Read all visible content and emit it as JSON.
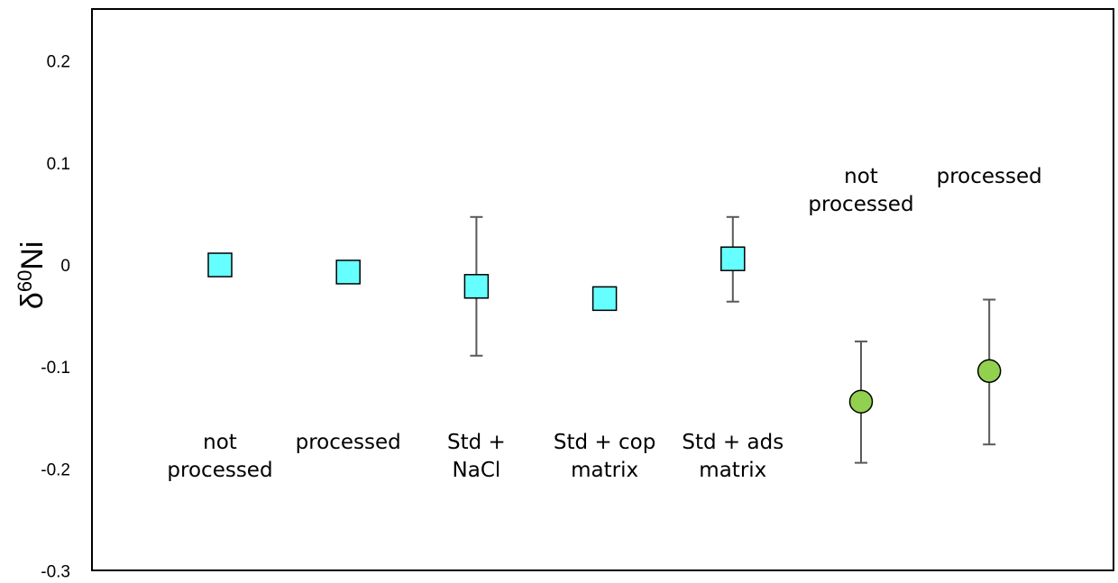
{
  "chart_data": {
    "type": "scatter",
    "title": "",
    "xlabel": "",
    "ylabel": {
      "base": "δ",
      "superscript": "60",
      "element": "Ni"
    },
    "ylim": [
      -0.3,
      0.25
    ],
    "yticks": [
      "-0.3",
      "-0.2",
      "-0.1",
      "0",
      "0.1",
      "0.2"
    ],
    "ytick_values": [
      -0.3,
      -0.2,
      -0.1,
      0,
      0.1,
      0.2
    ],
    "grid": false,
    "legend": "none",
    "colors": {
      "square": "#66ffff",
      "circle": "#92d050",
      "error_bar": "#595959",
      "frame": "#000000"
    },
    "points": [
      {
        "x": 1,
        "y": 0.0,
        "err_low": 0.0,
        "err_high": 0.0,
        "marker": "square",
        "label_lines": [
          "not",
          "processed"
        ],
        "label_pos": "below"
      },
      {
        "x": 2,
        "y": -0.007,
        "err_low": -0.007,
        "err_high": -0.007,
        "marker": "square",
        "label_lines": [
          "processed"
        ],
        "label_pos": "below"
      },
      {
        "x": 3,
        "y": -0.021,
        "err_low": -0.089,
        "err_high": 0.047,
        "marker": "square",
        "label_lines": [
          "Std +",
          "NaCl"
        ],
        "label_pos": "below"
      },
      {
        "x": 4,
        "y": -0.033,
        "err_low": -0.036,
        "err_high": -0.024,
        "marker": "square",
        "label_lines": [
          "Std + cop",
          "matrix"
        ],
        "label_pos": "below"
      },
      {
        "x": 5,
        "y": 0.006,
        "err_low": -0.036,
        "err_high": 0.047,
        "marker": "square",
        "label_lines": [
          "Std + ads",
          "matrix"
        ],
        "label_pos": "below"
      },
      {
        "x": 6,
        "y": -0.134,
        "err_low": -0.194,
        "err_high": -0.075,
        "marker": "circle",
        "label_lines": [
          "not",
          "processed"
        ],
        "label_pos": "above"
      },
      {
        "x": 7,
        "y": -0.104,
        "err_low": -0.176,
        "err_high": -0.034,
        "marker": "circle",
        "label_lines": [
          "processed"
        ],
        "label_pos": "above"
      }
    ]
  }
}
